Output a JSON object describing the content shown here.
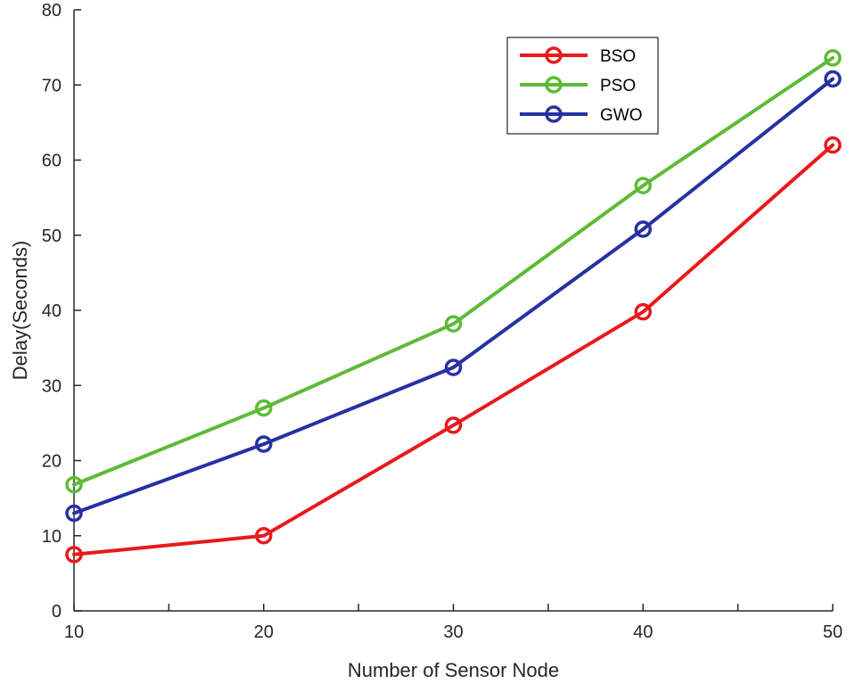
{
  "chart_data": {
    "type": "line",
    "title": "",
    "xlabel": "Number of Sensor Node",
    "ylabel": "Delay(Seconds)",
    "x": [
      10,
      20,
      30,
      40,
      50
    ],
    "xlim": [
      10,
      50
    ],
    "ylim": [
      0,
      80
    ],
    "xticks": [
      10,
      15,
      20,
      25,
      30,
      35,
      40,
      45,
      50
    ],
    "xtick_labels": [
      "10",
      "",
      "20",
      "",
      "30",
      "",
      "40",
      "",
      "50"
    ],
    "yticks": [
      0,
      10,
      20,
      30,
      40,
      50,
      60,
      70,
      80
    ],
    "ytick_labels": [
      "0",
      "10",
      "20",
      "30",
      "40",
      "50",
      "60",
      "70",
      "80"
    ],
    "grid": false,
    "legend_position": "top-right",
    "series": [
      {
        "name": "BSO",
        "color": "#e8191b",
        "values": [
          7.5,
          10,
          24.7,
          39.8,
          62
        ]
      },
      {
        "name": "PSO",
        "color": "#5dbb35",
        "values": [
          16.8,
          27,
          38.2,
          56.6,
          73.6
        ]
      },
      {
        "name": "GWO",
        "color": "#2631a3",
        "values": [
          13,
          22.2,
          32.4,
          50.8,
          70.8
        ]
      }
    ]
  }
}
